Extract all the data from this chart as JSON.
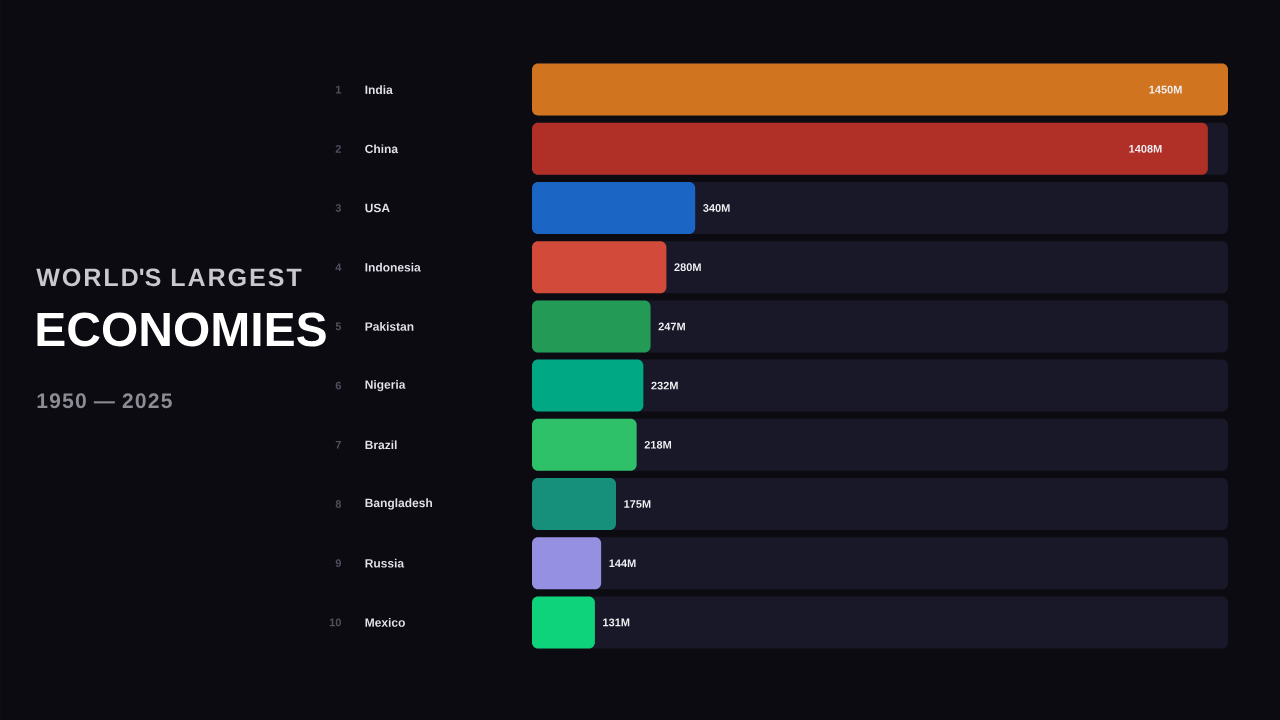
{
  "chart_data": {
    "type": "bar",
    "orientation": "horizontal",
    "title": "WORLD'S LARGEST",
    "subtitle": "ECONOMIES",
    "annotations": [
      "1950 — 2025",
      "1",
      "2",
      "3",
      "4",
      "5",
      "6",
      "7",
      "8",
      "9",
      "10"
    ],
    "categories": [
      "India",
      "China",
      "USA",
      "Indonesia",
      "Pakistan",
      "Nigeria",
      "Brazil",
      "Bangladesh",
      "Russia",
      "Mexico"
    ],
    "values": [
      1450,
      1408,
      340,
      280,
      247,
      232,
      218,
      175,
      144,
      131
    ],
    "colors": [
      "#d07420",
      "#b03028",
      "#1b66c4",
      "#d24a3a",
      "#239b56",
      "#00a884",
      "#2ec16a",
      "#16907a",
      "#9590e2",
      "#0fd37a"
    ],
    "value_labels": [
      "1450M",
      "1408M",
      "340M",
      "280M",
      "247M",
      "232M",
      "218M",
      "175M",
      "144M",
      "131M"
    ],
    "xlim": [
      0,
      1450
    ],
    "tick_labels": "y"
  }
}
